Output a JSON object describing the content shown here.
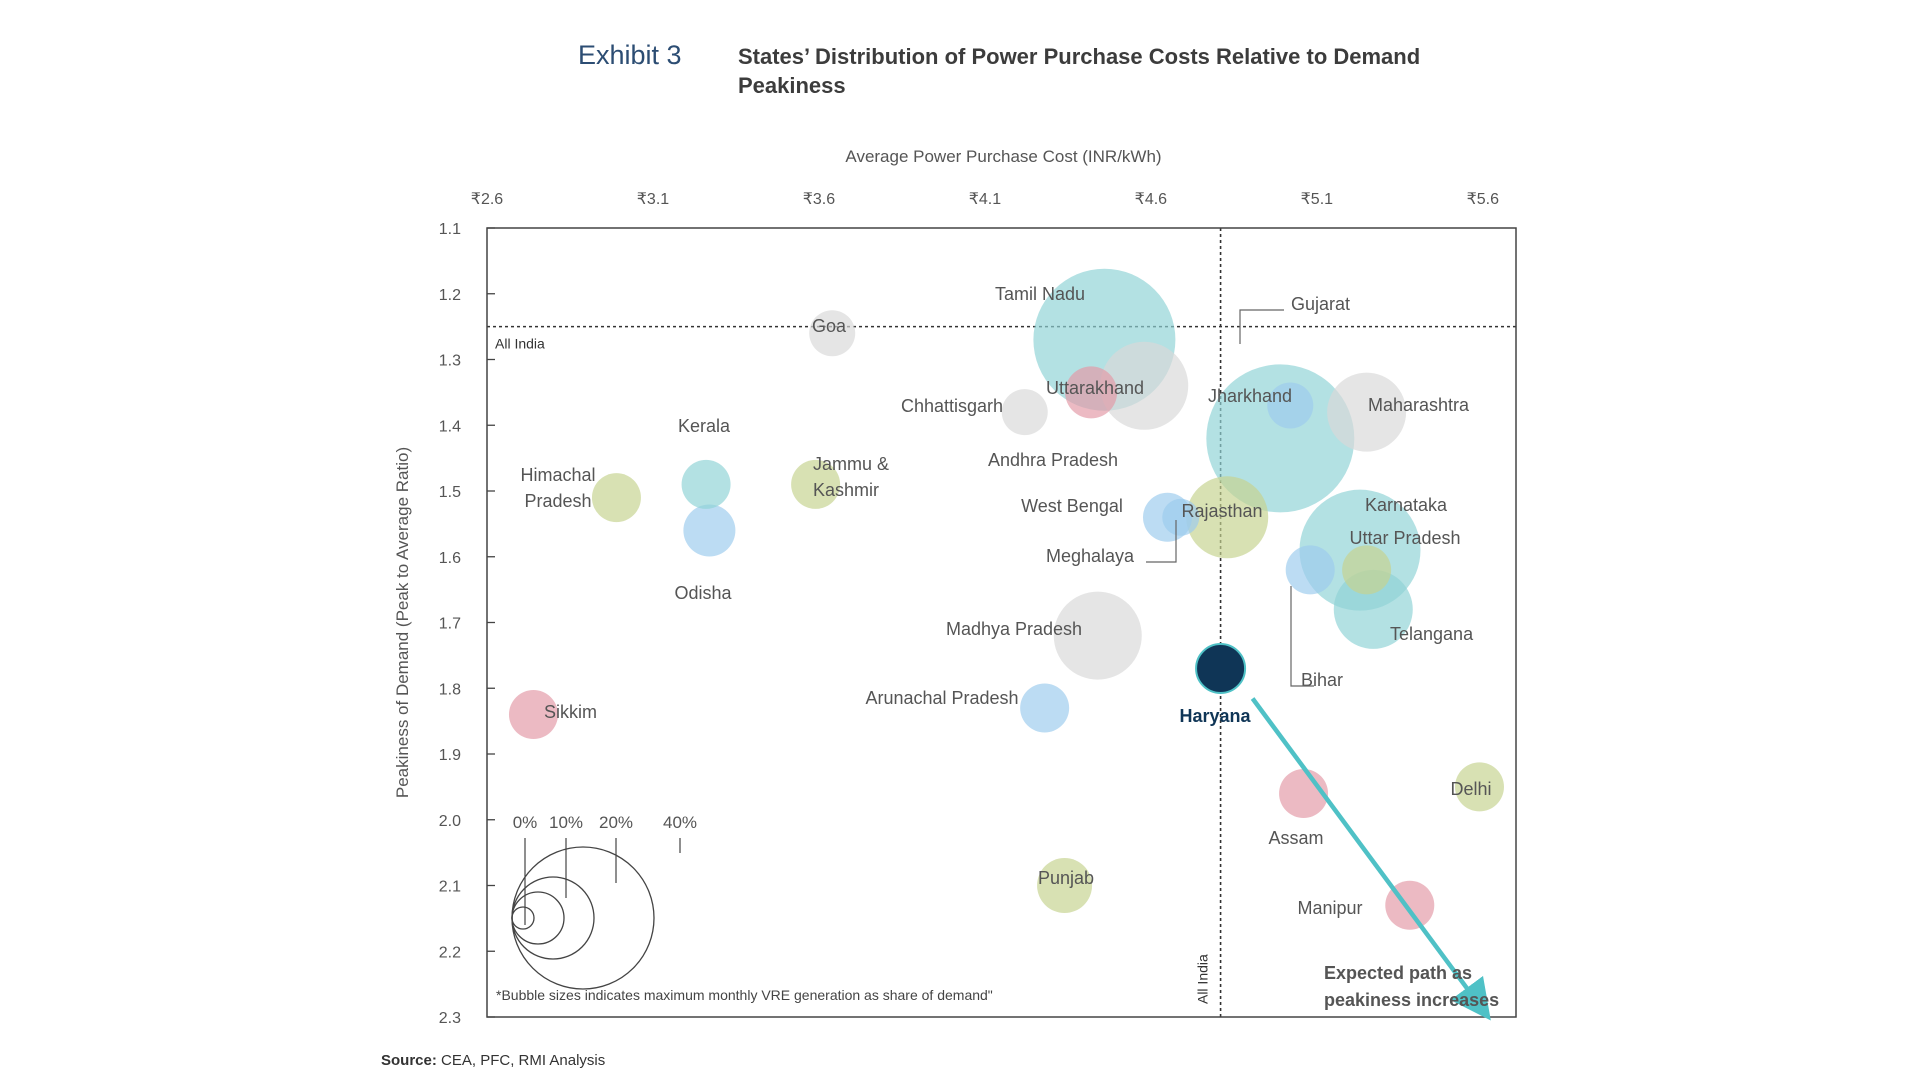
{
  "header": {
    "exhibit": "Exhibit 3",
    "title": "States’ Distribution of Power Purchase Costs Relative to Demand Peakiness"
  },
  "source": {
    "label": "Source:",
    "text": "CEA, PFC, RMI Analysis"
  },
  "colors": {
    "teal": "#8fd3d6",
    "blue": "#9ccbee",
    "green": "#c5d38f",
    "pink": "#e39aa7",
    "grey": "#d8d8d8",
    "navy": "#0f3556",
    "arrow": "#4fc1c6"
  },
  "chart_data": {
    "type": "scatter",
    "xlabel": "Average Power Purchase Cost (INR/kWh)",
    "ylabel": "Peakiness of Demand (Peak to Average Ratio)",
    "xlim": [
      2.6,
      5.7
    ],
    "ylim": [
      1.1,
      2.3
    ],
    "y_inverted": true,
    "x_axis_position": "top",
    "x_ticks": [
      2.6,
      3.1,
      3.6,
      4.1,
      4.6,
      5.1,
      5.6
    ],
    "x_tick_labels": [
      "₹2.6",
      "₹3.1",
      "₹3.6",
      "₹4.1",
      "₹4.6",
      "₹5.1",
      "₹5.6"
    ],
    "y_ticks": [
      1.1,
      1.2,
      1.3,
      1.4,
      1.5,
      1.6,
      1.7,
      1.8,
      1.9,
      2.0,
      2.1,
      2.2,
      2.3
    ],
    "y_tick_labels": [
      "1.1",
      "1.2",
      "1.3",
      "1.4",
      "1.5",
      "1.6",
      "1.7",
      "1.8",
      "1.9",
      "2.0",
      "2.1",
      "2.2",
      "2.3"
    ],
    "reference_lines": {
      "all_india_x": 4.81,
      "all_india_x_label": "All India",
      "all_india_y": 1.25,
      "all_india_y_label": "All India"
    },
    "bubble_size_metric": "maximum monthly VRE generation as share of demand (%)",
    "points": [
      {
        "name": "Tamil Nadu",
        "x": 4.46,
        "y": 1.27,
        "vre_pct": 40,
        "color": "teal"
      },
      {
        "name": "Gujarat",
        "x": 4.99,
        "y": 1.42,
        "vre_pct": 42,
        "color": "teal"
      },
      {
        "name": "Karnataka",
        "x": 5.23,
        "y": 1.59,
        "vre_pct": 33,
        "color": "teal"
      },
      {
        "name": "Telangana",
        "x": 5.27,
        "y": 1.68,
        "vre_pct": 19,
        "color": "teal"
      },
      {
        "name": "Kerala",
        "x": 3.26,
        "y": 1.49,
        "vre_pct": 9,
        "color": "teal"
      },
      {
        "name": "Andhra Pradesh",
        "x": 4.58,
        "y": 1.34,
        "vre_pct": 22,
        "color": "grey"
      },
      {
        "name": "Goa",
        "x": 3.64,
        "y": 1.26,
        "vre_pct": 8,
        "color": "grey"
      },
      {
        "name": "Chhattisgarh",
        "x": 4.22,
        "y": 1.38,
        "vre_pct": 8,
        "color": "grey"
      },
      {
        "name": "Maharashtra",
        "x": 5.25,
        "y": 1.38,
        "vre_pct": 19,
        "color": "grey"
      },
      {
        "name": "Madhya Pradesh",
        "x": 4.44,
        "y": 1.72,
        "vre_pct": 22,
        "color": "grey"
      },
      {
        "name": "Uttarakhand",
        "x": 4.42,
        "y": 1.35,
        "vre_pct": 10,
        "color": "pink"
      },
      {
        "name": "Sikkim",
        "x": 2.74,
        "y": 1.84,
        "vre_pct": 9,
        "color": "pink"
      },
      {
        "name": "Assam",
        "x": 5.06,
        "y": 1.96,
        "vre_pct": 9,
        "color": "pink"
      },
      {
        "name": "Manipur",
        "x": 5.38,
        "y": 2.13,
        "vre_pct": 9,
        "color": "pink"
      },
      {
        "name": "Jharkhand",
        "x": 5.02,
        "y": 1.37,
        "vre_pct": 8,
        "color": "blue"
      },
      {
        "name": "Odisha",
        "x": 3.27,
        "y": 1.56,
        "vre_pct": 10,
        "color": "blue"
      },
      {
        "name": "West Bengal",
        "x": 4.65,
        "y": 1.54,
        "vre_pct": 9,
        "color": "blue"
      },
      {
        "name": "Meghalaya",
        "x": 4.69,
        "y": 1.54,
        "vre_pct": 5,
        "color": "blue"
      },
      {
        "name": "Bihar",
        "x": 5.08,
        "y": 1.62,
        "vre_pct": 9,
        "color": "blue"
      },
      {
        "name": "Arunachal Pradesh",
        "x": 4.28,
        "y": 1.83,
        "vre_pct": 9,
        "color": "blue"
      },
      {
        "name": "Himachal Pradesh",
        "x": 2.99,
        "y": 1.51,
        "vre_pct": 9,
        "color": "green"
      },
      {
        "name": "Jammu & Kashmir",
        "x": 3.59,
        "y": 1.49,
        "vre_pct": 9,
        "color": "green"
      },
      {
        "name": "Rajasthan",
        "x": 4.83,
        "y": 1.54,
        "vre_pct": 20,
        "color": "green"
      },
      {
        "name": "Uttar Pradesh",
        "x": 5.25,
        "y": 1.62,
        "vre_pct": 9,
        "color": "green"
      },
      {
        "name": "Delhi",
        "x": 5.59,
        "y": 1.95,
        "vre_pct": 9,
        "color": "green"
      },
      {
        "name": "Punjab",
        "x": 4.34,
        "y": 2.1,
        "vre_pct": 11,
        "color": "green"
      },
      {
        "name": "Haryana",
        "x": 4.81,
        "y": 1.77,
        "vre_pct": 9,
        "color": "navy",
        "highlight": true
      }
    ],
    "labels": [
      {
        "name": "Tamil Nadu",
        "text": [
          "Tamil Nadu"
        ]
      },
      {
        "name": "Gujarat",
        "text": [
          "Gujarat"
        ]
      },
      {
        "name": "Karnataka",
        "text": [
          "Karnataka"
        ]
      },
      {
        "name": "Telangana",
        "text": [
          "Telangana"
        ]
      },
      {
        "name": "Kerala",
        "text": [
          "Kerala"
        ]
      },
      {
        "name": "Andhra Pradesh",
        "text": [
          "Andhra Pradesh"
        ]
      },
      {
        "name": "Goa",
        "text": [
          "Goa"
        ]
      },
      {
        "name": "Chhattisgarh",
        "text": [
          "Chhattisgarh"
        ]
      },
      {
        "name": "Maharashtra",
        "text": [
          "Maharashtra"
        ]
      },
      {
        "name": "Madhya Pradesh",
        "text": [
          "Madhya Pradesh"
        ]
      },
      {
        "name": "Uttarakhand",
        "text": [
          "Uttarakhand"
        ]
      },
      {
        "name": "Sikkim",
        "text": [
          "Sikkim"
        ]
      },
      {
        "name": "Assam",
        "text": [
          "Assam"
        ]
      },
      {
        "name": "Manipur",
        "text": [
          "Manipur"
        ]
      },
      {
        "name": "Jharkhand",
        "text": [
          "Jharkhand"
        ]
      },
      {
        "name": "Odisha",
        "text": [
          "Odisha"
        ]
      },
      {
        "name": "West Bengal",
        "text": [
          "West Bengal"
        ]
      },
      {
        "name": "Meghalaya",
        "text": [
          "Meghalaya"
        ]
      },
      {
        "name": "Bihar",
        "text": [
          "Bihar"
        ]
      },
      {
        "name": "Arunachal Pradesh",
        "text": [
          "Arunachal Pradesh"
        ]
      },
      {
        "name": "Himachal Pradesh",
        "text": [
          "Himachal",
          "Pradesh"
        ]
      },
      {
        "name": "Jammu & Kashmir",
        "text": [
          "Jammu &",
          "Kashmir"
        ]
      },
      {
        "name": "Rajasthan",
        "text": [
          "Rajasthan"
        ]
      },
      {
        "name": "Uttar Pradesh",
        "text": [
          "Uttar Pradesh"
        ]
      },
      {
        "name": "Delhi",
        "text": [
          "Delhi"
        ]
      },
      {
        "name": "Punjab",
        "text": [
          "Punjab"
        ]
      },
      {
        "name": "Haryana",
        "text": [
          "Haryana"
        ]
      }
    ],
    "size_legend": {
      "values": [
        0,
        10,
        20,
        40
      ],
      "labels": [
        "0%",
        "10%",
        "20%",
        "40%"
      ],
      "note": "*Bubble sizes indicates maximum monthly VRE generation as share of demand\""
    },
    "annotation": {
      "text": [
        "Expected path as",
        "peakiness increases"
      ],
      "arrow_from": [
        4.81,
        1.77
      ],
      "arrow_to": [
        5.62,
        2.29
      ]
    }
  }
}
